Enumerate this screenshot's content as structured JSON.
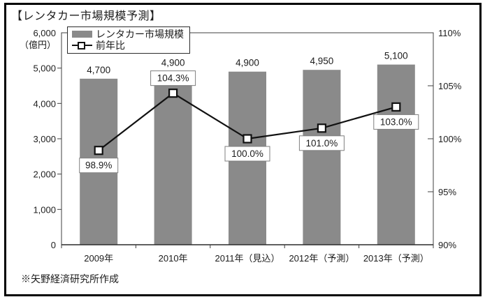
{
  "chart_data": {
    "type": "bar+line",
    "title": "【レンタカー市場規模予測】",
    "footnote": "※矢野経済研究所作成",
    "categories": [
      "2009年",
      "2010年",
      "2011年（見込）",
      "2012年（予測）",
      "2013年（予測）"
    ],
    "series": [
      {
        "name": "レンタカー市場規模",
        "type": "bar",
        "axis": "left",
        "values": [
          4700,
          4900,
          4900,
          4950,
          5100
        ],
        "value_labels": [
          "4,700",
          "4,900",
          "4,900",
          "4,950",
          "5,100"
        ],
        "color": "#8a8a8a"
      },
      {
        "name": "前年比",
        "type": "line",
        "axis": "right",
        "values": [
          98.9,
          104.3,
          100.0,
          101.0,
          103.0
        ],
        "value_labels": [
          "98.9%",
          "104.3%",
          "100.0%",
          "101.0%",
          "103.0%"
        ],
        "label_positions": [
          "below",
          "above",
          "below",
          "below",
          "below"
        ],
        "color": "#111111",
        "marker": "white-square"
      }
    ],
    "left_axis": {
      "title": "（億円）",
      "min": 0,
      "max": 6000,
      "step": 1000,
      "tick_values": [
        0,
        1000,
        2000,
        3000,
        4000,
        5000,
        6000
      ],
      "tick_labels": [
        "0",
        "1,000",
        "2,000",
        "3,000",
        "4,000",
        "5,000",
        "6,000"
      ]
    },
    "right_axis": {
      "min": 90,
      "max": 110,
      "step": 5,
      "tick_values": [
        90,
        95,
        100,
        105,
        110
      ],
      "tick_labels": [
        "90%",
        "95%",
        "100%",
        "105%",
        "110%"
      ]
    },
    "legend_position": "top-left-inside",
    "grid": false
  }
}
